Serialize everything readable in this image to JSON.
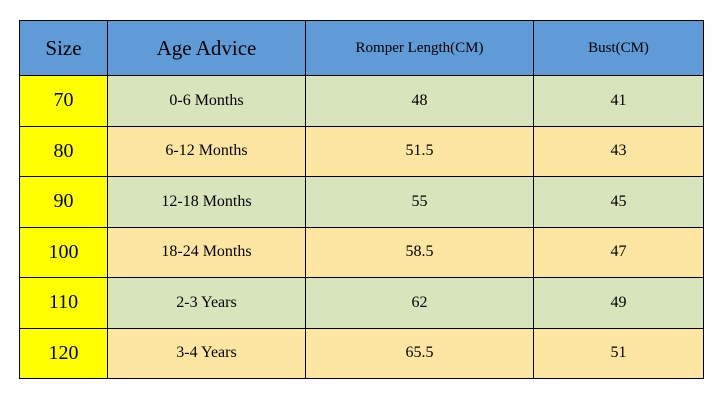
{
  "table": {
    "header": [
      "Size",
      "Age Advice",
      "Romper Length(CM)",
      "Bust(CM)"
    ],
    "rows": [
      [
        "70",
        "0-6 Months",
        "48",
        "41"
      ],
      [
        "80",
        "6-12 Months",
        "51.5",
        "43"
      ],
      [
        "90",
        "12-18 Months",
        "55",
        "45"
      ],
      [
        "100",
        "18-24 Months",
        "58.5",
        "47"
      ],
      [
        "110",
        "2-3 Years",
        "62",
        "49"
      ],
      [
        "120",
        "3-4 Years",
        "65.5",
        "51"
      ]
    ]
  }
}
